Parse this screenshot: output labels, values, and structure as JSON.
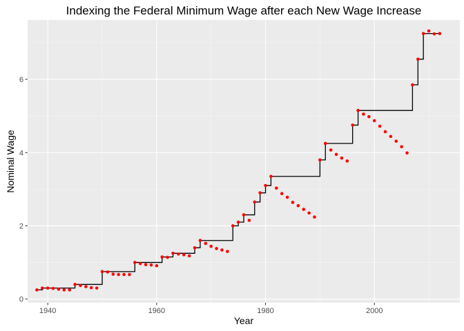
{
  "chart_data": {
    "type": "line",
    "title": "Indexing the Federal Minimum Wage after each New Wage Increase",
    "xlabel": "Year",
    "ylabel": "Nominal Wage",
    "xlim": [
      1936.3,
      2015.7
    ],
    "ylim": [
      -0.1,
      7.62
    ],
    "x_ticks": [
      1940,
      1960,
      1980,
      2000
    ],
    "y_ticks": [
      0,
      2,
      4,
      6
    ],
    "grid": true,
    "legend": "none",
    "colors": {
      "panel_background": "#ebebeb",
      "grid_major": "#ffffff",
      "grid_minor": "#f5f5f5",
      "step_line": "#000000",
      "points": "#ff0000"
    },
    "series": [
      {
        "type": "step",
        "x": [
          1938,
          1939,
          1945,
          1950,
          1956,
          1961,
          1963,
          1967,
          1968,
          1974,
          1975,
          1976,
          1978,
          1979,
          1980,
          1981,
          1990,
          1991,
          1996,
          1997,
          2007,
          2008,
          2009,
          2012
        ],
        "values": [
          0.25,
          0.3,
          0.4,
          0.75,
          1.0,
          1.15,
          1.25,
          1.4,
          1.6,
          2.0,
          2.1,
          2.3,
          2.65,
          2.9,
          3.1,
          3.35,
          3.8,
          4.25,
          4.75,
          5.15,
          5.85,
          6.55,
          7.25,
          7.25
        ]
      },
      {
        "type": "scatter",
        "x": [
          1938,
          1939,
          1940,
          1941,
          1942,
          1943,
          1944,
          1945,
          1946,
          1947,
          1948,
          1949,
          1950,
          1951,
          1952,
          1953,
          1954,
          1955,
          1956,
          1957,
          1958,
          1959,
          1960,
          1961,
          1962,
          1963,
          1964,
          1965,
          1966,
          1967,
          1968,
          1969,
          1970,
          1971,
          1972,
          1973,
          1974,
          1975,
          1976,
          1977,
          1978,
          1979,
          1980,
          1981,
          1982,
          1983,
          1984,
          1985,
          1986,
          1987,
          1988,
          1989,
          1990,
          1991,
          1992,
          1993,
          1994,
          1995,
          1996,
          1997,
          1998,
          1999,
          2000,
          2001,
          2002,
          2003,
          2004,
          2005,
          2006,
          2007,
          2008,
          2009,
          2010,
          2011,
          2012
        ],
        "values": [
          0.25,
          0.3,
          0.3,
          0.29,
          0.27,
          0.25,
          0.25,
          0.4,
          0.37,
          0.34,
          0.31,
          0.3,
          0.75,
          0.74,
          0.68,
          0.67,
          0.67,
          0.67,
          1.0,
          0.97,
          0.94,
          0.93,
          0.91,
          1.15,
          1.14,
          1.25,
          1.23,
          1.21,
          1.18,
          1.4,
          1.6,
          1.52,
          1.44,
          1.38,
          1.34,
          1.3,
          2.0,
          2.1,
          2.3,
          2.15,
          2.65,
          2.9,
          3.1,
          3.35,
          3.03,
          2.88,
          2.78,
          2.64,
          2.55,
          2.45,
          2.35,
          2.24,
          3.8,
          4.25,
          4.07,
          3.95,
          3.85,
          3.77,
          4.75,
          5.15,
          5.05,
          4.98,
          4.87,
          4.72,
          4.57,
          4.44,
          4.31,
          4.16,
          3.99,
          5.85,
          6.55,
          7.25,
          7.32,
          7.24,
          7.25
        ]
      }
    ]
  }
}
